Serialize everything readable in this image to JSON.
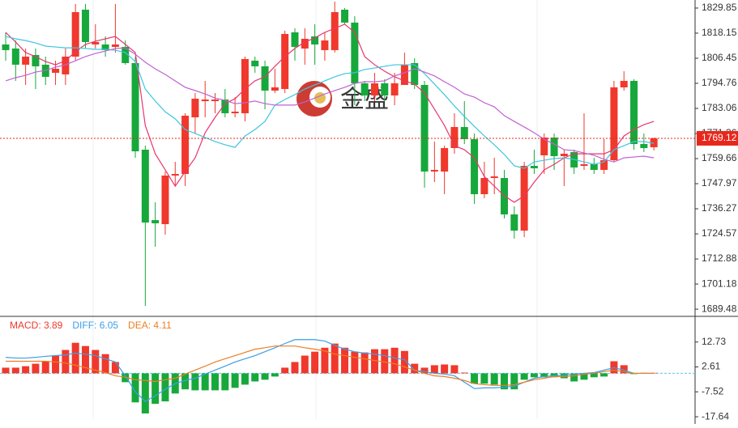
{
  "watermark": "金盛",
  "chart_data": [
    {
      "type": "candlestick",
      "up_color": "#f0382c",
      "down_color": "#17a83b",
      "ylim": [
        1686.5,
        1833.6
      ],
      "yticks": [
        1829.85,
        1818.15,
        1806.45,
        1794.76,
        1783.06,
        1771.36,
        1759.66,
        1747.97,
        1736.27,
        1724.57,
        1712.88,
        1701.18,
        1689.48
      ],
      "last_price": 1769.12,
      "last_price_color": "#e8271c",
      "open": [
        1812.87,
        1810.98,
        1803.44,
        1807.96,
        1803.44,
        1799.66,
        1798.91,
        1807.21,
        1829.09,
        1812.87,
        1812.87,
        1811.74,
        1811.74,
        1804.19,
        1763.82,
        1730.99,
        1729.11,
        1751.75,
        1752.5,
        1778.91,
        1786.46,
        1786.46,
        1787.21,
        1780.8,
        1780.8,
        1805.32,
        1802.68,
        1791.36,
        1792.12,
        1818.53,
        1810.98,
        1816.64,
        1810.23,
        1810.23,
        1829.09,
        1823.06,
        1794.76,
        1789.1,
        1794.76,
        1789.1,
        1794.0,
        1804.19,
        1794.0,
        1753.63,
        1753.63,
        1764.57,
        1774.38,
        1768.72,
        1743.07,
        1750.61,
        1750.61,
        1733.64,
        1726.09,
        1756.27,
        1761.18,
        1769.48,
        1760.8,
        1762.69,
        1756.27,
        1757.03,
        1754.39,
        1758.91,
        1792.87,
        1795.89,
        1766.46,
        1764.95
      ],
      "high": [
        1818.53,
        1814.75,
        1810.98,
        1810.98,
        1807.21,
        1805.32,
        1810.98,
        1831.73,
        1831.73,
        1822.3,
        1816.64,
        1831.73,
        1814.75,
        1807.21,
        1765.71,
        1739.29,
        1753.63,
        1758.16,
        1780.8,
        1790.23,
        1795.89,
        1790.23,
        1792.12,
        1788.34,
        1807.21,
        1807.21,
        1805.32,
        1801.55,
        1819.28,
        1820.41,
        1820.41,
        1822.3,
        1818.53,
        1832.87,
        1829.85,
        1826.07,
        1795.89,
        1799.66,
        1796.64,
        1799.66,
        1809.1,
        1806.45,
        1795.89,
        1767.59,
        1765.71,
        1780.8,
        1786.46,
        1771.37,
        1758.16,
        1760.05,
        1754.39,
        1737.41,
        1758.16,
        1763.82,
        1771.37,
        1771.37,
        1763.82,
        1763.82,
        1780.8,
        1760.05,
        1768.72,
        1795.89,
        1800.42,
        1796.64,
        1771.37,
        1769.48
      ],
      "low": [
        1805.32,
        1795.89,
        1794.0,
        1792.12,
        1794.0,
        1794.0,
        1794.0,
        1805.32,
        1810.98,
        1810.98,
        1807.21,
        1809.1,
        1803.44,
        1760.05,
        1691.0,
        1718.54,
        1724.2,
        1746.84,
        1746.84,
        1771.37,
        1778.91,
        1780.8,
        1778.91,
        1778.91,
        1777.02,
        1799.66,
        1782.68,
        1790.23,
        1790.23,
        1805.32,
        1803.44,
        1803.44,
        1805.32,
        1809.1,
        1822.3,
        1784.57,
        1786.46,
        1786.46,
        1786.46,
        1784.57,
        1794.0,
        1792.12,
        1746.09,
        1748.73,
        1743.07,
        1761.93,
        1766.46,
        1738.54,
        1741.18,
        1743.07,
        1731.75,
        1722.32,
        1723.07,
        1752.5,
        1752.5,
        1754.39,
        1746.84,
        1752.5,
        1754.39,
        1752.5,
        1752.5,
        1758.16,
        1791.36,
        1763.82,
        1762.69,
        1763.44
      ],
      "close": [
        1810.23,
        1803.44,
        1807.21,
        1802.68,
        1797.78,
        1801.55,
        1807.21,
        1827.96,
        1814.0,
        1814.0,
        1810.23,
        1812.87,
        1804.19,
        1763.06,
        1729.86,
        1729.49,
        1751.75,
        1752.5,
        1779.67,
        1787.59,
        1787.21,
        1787.21,
        1780.8,
        1781.55,
        1806.08,
        1802.68,
        1791.36,
        1792.87,
        1817.77,
        1811.74,
        1815.51,
        1812.87,
        1814.75,
        1827.96,
        1823.06,
        1794.76,
        1789.1,
        1794.76,
        1789.1,
        1794.76,
        1803.44,
        1794.0,
        1753.63,
        1754.39,
        1764.57,
        1774.38,
        1768.72,
        1743.07,
        1750.61,
        1751.37,
        1733.64,
        1726.09,
        1756.27,
        1755.14,
        1769.48,
        1760.8,
        1761.93,
        1755.52,
        1757.03,
        1754.39,
        1758.91,
        1792.87,
        1795.89,
        1766.46,
        1764.57,
        1769.12
      ],
      "series": [
        {
          "color": "#e8366e",
          "values": [
            1818.5,
            1814.0,
            1809.1,
            1807.2,
            1804.9,
            1803.4,
            1805.3,
            1809.5,
            1812.9,
            1814.4,
            1815.5,
            1816.6,
            1812.9,
            1809.1,
            1775.1,
            1761.9,
            1754.4,
            1746.8,
            1753.6,
            1760.0,
            1771.7,
            1778.9,
            1785.3,
            1787.6,
            1792.1,
            1795.9,
            1797.8,
            1802.7,
            1807.2,
            1811.0,
            1814.0,
            1815.9,
            1818.5,
            1820.4,
            1822.3,
            1818.5,
            1807.2,
            1803.4,
            1800.4,
            1797.8,
            1795.9,
            1794.4,
            1790.2,
            1782.7,
            1775.1,
            1765.7,
            1763.8,
            1760.0,
            1751.3,
            1746.8,
            1742.3,
            1739.3,
            1742.3,
            1748.7,
            1754.4,
            1757.0,
            1760.0,
            1761.9,
            1761.9,
            1761.9,
            1761.9,
            1763.8,
            1770.2,
            1773.2,
            1775.5,
            1777.0
          ]
        },
        {
          "color": "#3ec6de",
          "values": [
            1816.6,
            1815.5,
            1814.7,
            1813.6,
            1812.1,
            1811.7,
            1811.3,
            1811.3,
            1811.0,
            1810.6,
            1810.6,
            1810.2,
            1809.1,
            1804.9,
            1792.1,
            1786.5,
            1781.5,
            1778.2,
            1773.2,
            1771.4,
            1769.5,
            1767.6,
            1766.1,
            1764.9,
            1770.2,
            1773.2,
            1777.0,
            1784.6,
            1787.2,
            1789.5,
            1792.1,
            1794.0,
            1795.9,
            1797.8,
            1799.3,
            1799.7,
            1801.2,
            1801.9,
            1802.7,
            1803.4,
            1803.4,
            1803.4,
            1799.3,
            1794.4,
            1789.5,
            1784.2,
            1779.3,
            1774.7,
            1770.2,
            1766.1,
            1761.6,
            1756.3,
            1755.1,
            1758.1,
            1758.9,
            1759.7,
            1760.0,
            1759.3,
            1758.1,
            1757.0,
            1758.1,
            1763.8,
            1765.7,
            1767.6,
            1767.6,
            1766.8
          ]
        },
        {
          "color": "#c062d2",
          "values": [
            1795.9,
            1797.4,
            1798.5,
            1800.0,
            1800.8,
            1802.3,
            1803.4,
            1805.3,
            1807.2,
            1808.7,
            1809.8,
            1811.0,
            1811.3,
            1808.3,
            1804.6,
            1801.5,
            1798.9,
            1795.9,
            1792.9,
            1791.4,
            1789.8,
            1787.9,
            1786.8,
            1785.3,
            1785.7,
            1786.5,
            1785.3,
            1784.6,
            1784.6,
            1784.6,
            1786.1,
            1787.9,
            1789.8,
            1791.4,
            1792.9,
            1794.7,
            1795.5,
            1795.5,
            1795.9,
            1798.2,
            1799.7,
            1801.5,
            1800.0,
            1798.2,
            1795.5,
            1792.9,
            1789.8,
            1788.3,
            1785.7,
            1783.8,
            1779.7,
            1777.0,
            1774.4,
            1771.7,
            1768.7,
            1766.4,
            1763.8,
            1763.4,
            1762.3,
            1761.2,
            1759.3,
            1758.1,
            1760.0,
            1760.4,
            1760.8,
            1760.0
          ]
        }
      ]
    },
    {
      "type": "macd",
      "ylim": [
        -18.6,
        22.5
      ],
      "yticks": [
        12.73,
        2.61,
        -7.52,
        -17.64
      ],
      "zero_line_color": "#5bc8e8",
      "series": [
        {
          "name": "MACD: 3.89",
          "type": "bar",
          "color": "#f0382c",
          "down_color": "#17a83b",
          "values": [
            2.3,
            2.3,
            2.9,
            3.9,
            4.9,
            7.2,
            9.5,
            12.4,
            11.1,
            9.5,
            7.8,
            4.6,
            -3.6,
            -11.8,
            -16.3,
            -12.4,
            -11.4,
            -8.2,
            -6.5,
            -6.9,
            -6.9,
            -6.9,
            -6.9,
            -5.9,
            -4.6,
            -3.3,
            -2.6,
            -1.3,
            2.3,
            4.6,
            7.2,
            8.8,
            10.4,
            12.1,
            10.4,
            8.8,
            8.5,
            9.8,
            9.8,
            10.4,
            9.1,
            3.9,
            2.3,
            3.3,
            3.6,
            3.3,
            0.3,
            -4.2,
            -4.2,
            -4.6,
            -6.5,
            -6.5,
            -2.6,
            -1.6,
            -1.6,
            -1.6,
            -2.0,
            -3.3,
            -2.6,
            -1.6,
            -1.3,
            4.9,
            3.3,
            -0.3,
            0.2,
            0.2
          ]
        },
        {
          "name": "DIFF: 6.05",
          "type": "line",
          "color": "#3b9fe6",
          "values": [
            6.5,
            6.2,
            6.2,
            6.5,
            6.9,
            7.2,
            7.5,
            8.2,
            7.8,
            7.2,
            5.9,
            4.6,
            -1.0,
            -7.5,
            -11.4,
            -9.1,
            -6.5,
            -4.2,
            -2.9,
            -2.0,
            -0.3,
            1.3,
            2.9,
            4.6,
            5.9,
            7.2,
            8.8,
            10.4,
            12.1,
            13.7,
            13.7,
            13.7,
            13.1,
            11.4,
            9.8,
            8.8,
            8.2,
            7.8,
            7.2,
            6.2,
            5.6,
            1.3,
            0.7,
            0,
            -0.3,
            -1.0,
            -3.6,
            -6.2,
            -5.9,
            -5.9,
            -5.6,
            -5.2,
            -3.6,
            -2.0,
            -1.3,
            -1.0,
            -0.7,
            -0.3,
            0,
            0.3,
            1.3,
            2.3,
            1.3,
            0,
            0,
            0
          ]
        },
        {
          "name": "DEA: 4.11",
          "type": "line",
          "color": "#ee7d22",
          "values": [
            4.9,
            4.9,
            4.9,
            4.9,
            4.9,
            4.6,
            4.2,
            3.3,
            2.3,
            1.3,
            0.3,
            -1.0,
            -1.6,
            -2.6,
            -2.9,
            -3.3,
            -2.6,
            -2.0,
            -0.3,
            1.3,
            2.9,
            4.6,
            5.9,
            7.2,
            8.5,
            9.8,
            10.4,
            11.1,
            11.1,
            11.1,
            10.4,
            9.8,
            9.1,
            7.8,
            7.2,
            6.5,
            5.9,
            5.2,
            4.6,
            3.9,
            2.6,
            1.3,
            0,
            -1.0,
            -1.3,
            -2.0,
            -2.9,
            -4.2,
            -4.6,
            -4.9,
            -4.9,
            -4.6,
            -3.6,
            -2.6,
            -2.0,
            -1.3,
            -1.3,
            -1.0,
            -0.3,
            0,
            0.7,
            1.3,
            0.7,
            0,
            0,
            0
          ]
        }
      ]
    }
  ]
}
